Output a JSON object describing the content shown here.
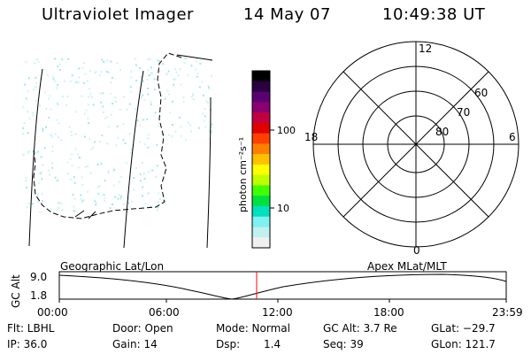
{
  "header": {
    "instrument": "Ultraviolet Imager",
    "date": "14 May 07",
    "time": "10:49:38 UT"
  },
  "colorbar": {
    "unit": "photon cm⁻²s⁻¹",
    "ticks": [
      "100",
      "10"
    ],
    "colors": [
      "#000000",
      "#2a0040",
      "#5a0070",
      "#8a0070",
      "#c00040",
      "#e00000",
      "#ff4000",
      "#ff8000",
      "#ffc000",
      "#ffff00",
      "#c0ff00",
      "#40ff00",
      "#00e040",
      "#00e0c0",
      "#80f0f0",
      "#c0f0f0",
      "#f0f0f0"
    ]
  },
  "polar": {
    "lat_labels": [
      "60",
      "70",
      "80"
    ],
    "mlt_labels": {
      "top": "12",
      "left": "18",
      "right": "6",
      "bottom": "0"
    }
  },
  "timeline": {
    "left_label": "Geographic Lat/Lon",
    "right_label": "Apex  MLat/MLT",
    "axis_label": "GC Alt",
    "y_ticks": [
      "9.0",
      "1.8"
    ],
    "x_ticks": [
      "00:00",
      "06:00",
      "12:00",
      "18:00",
      "23:59"
    ],
    "marker_color": "#ff0000"
  },
  "info": {
    "flt": "Flt: LBHL",
    "ip": "IP: 36.0",
    "door": "Door: Open",
    "gain": "Gain: 14",
    "mode": "Mode: Normal",
    "dsp_label": "Dsp:",
    "dsp_value": "1.4",
    "gcalt": "GC Alt: 3.7 Re",
    "seq": "Seq: 39",
    "glat": "GLat: −29.7",
    "glon": "GLon: 121.7"
  }
}
